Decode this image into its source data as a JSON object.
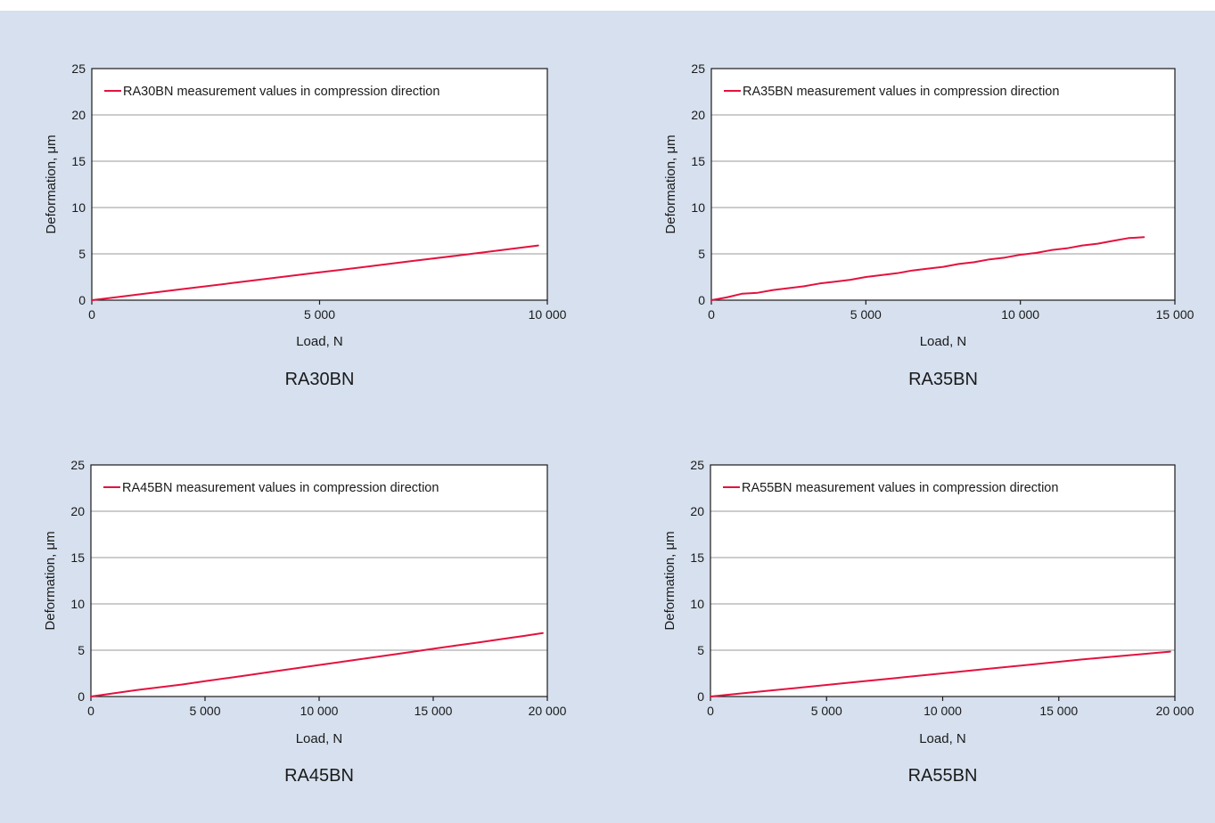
{
  "colors": {
    "background": "#d6e0ee",
    "plot_background": "#ffffff",
    "series": "#e3123f",
    "grid": "#9a9a9a",
    "axis": "#1a1a1a"
  },
  "chart_data": [
    {
      "type": "line",
      "chart_label": "RA30BN",
      "xlabel": "Load, N",
      "ylabel": "Deformation, μm",
      "xlim": [
        0,
        10000
      ],
      "ylim": [
        0,
        25
      ],
      "xticks": [
        0,
        5000,
        10000
      ],
      "xtick_labels": [
        "0",
        "5 000",
        "10 000"
      ],
      "yticks": [
        0,
        5,
        10,
        15,
        20,
        25
      ],
      "ytick_labels": [
        "0",
        "5",
        "10",
        "15",
        "20",
        "25"
      ],
      "grid": "horizontal",
      "legend_position": "top-left",
      "series": [
        {
          "name": "RA30BN measurement values in compression direction",
          "x": [
            0,
            1000,
            2000,
            3000,
            4000,
            5000,
            6000,
            7000,
            8000,
            9000,
            9800
          ],
          "y": [
            0,
            0.6,
            1.2,
            1.8,
            2.4,
            3.0,
            3.6,
            4.2,
            4.8,
            5.4,
            5.9
          ]
        }
      ]
    },
    {
      "type": "line",
      "chart_label": "RA35BN",
      "xlabel": "Load, N",
      "ylabel": "Deformation, μm",
      "xlim": [
        0,
        15000
      ],
      "ylim": [
        0,
        25
      ],
      "xticks": [
        0,
        5000,
        10000,
        15000
      ],
      "xtick_labels": [
        "0",
        "5 000",
        "10 000",
        "15 000"
      ],
      "yticks": [
        0,
        5,
        10,
        15,
        20,
        25
      ],
      "ytick_labels": [
        "0",
        "5",
        "10",
        "15",
        "20",
        "25"
      ],
      "grid": "horizontal",
      "legend_position": "top-left",
      "series": [
        {
          "name": "RA35BN measurement values in compression direction",
          "x": [
            0,
            500,
            1000,
            1500,
            2000,
            2500,
            3000,
            3500,
            4000,
            4500,
            5000,
            5500,
            6000,
            6500,
            7000,
            7500,
            8000,
            8500,
            9000,
            9500,
            10000,
            10500,
            11000,
            11500,
            12000,
            12500,
            13000,
            13500,
            14000
          ],
          "y": [
            0,
            0.3,
            0.7,
            0.8,
            1.1,
            1.3,
            1.5,
            1.8,
            2.0,
            2.2,
            2.5,
            2.7,
            2.9,
            3.2,
            3.4,
            3.6,
            3.9,
            4.1,
            4.4,
            4.6,
            4.9,
            5.1,
            5.4,
            5.6,
            5.9,
            6.1,
            6.4,
            6.7,
            6.8
          ]
        }
      ]
    },
    {
      "type": "line",
      "chart_label": "RA45BN",
      "xlabel": "Load, N",
      "ylabel": "Deformation, μm",
      "xlim": [
        0,
        20000
      ],
      "ylim": [
        0,
        25
      ],
      "xticks": [
        0,
        5000,
        10000,
        15000,
        20000
      ],
      "xtick_labels": [
        "0",
        "5 000",
        "10 000",
        "15 000",
        "20 000"
      ],
      "yticks": [
        0,
        5,
        10,
        15,
        20,
        25
      ],
      "ytick_labels": [
        "0",
        "5",
        "10",
        "15",
        "20",
        "25"
      ],
      "grid": "horizontal",
      "legend_position": "top-left",
      "series": [
        {
          "name": "RA45BN measurement values in compression direction",
          "x": [
            0,
            1000,
            2000,
            3000,
            4000,
            5000,
            6000,
            7000,
            8000,
            9000,
            10000,
            11000,
            12000,
            13000,
            14000,
            15000,
            16000,
            17000,
            18000,
            19000,
            19800
          ],
          "y": [
            0,
            0.35,
            0.7,
            1.0,
            1.3,
            1.65,
            2.0,
            2.35,
            2.7,
            3.05,
            3.4,
            3.75,
            4.1,
            4.45,
            4.8,
            5.15,
            5.5,
            5.85,
            6.2,
            6.55,
            6.85
          ]
        }
      ]
    },
    {
      "type": "line",
      "chart_label": "RA55BN",
      "xlabel": "Load, N",
      "ylabel": "Deformation, μm",
      "xlim": [
        0,
        20000
      ],
      "ylim": [
        0,
        25
      ],
      "xticks": [
        0,
        5000,
        10000,
        15000,
        20000
      ],
      "xtick_labels": [
        "0",
        "5 000",
        "10 000",
        "15 000",
        "20 000"
      ],
      "yticks": [
        0,
        5,
        10,
        15,
        20,
        25
      ],
      "ytick_labels": [
        "0",
        "5",
        "10",
        "15",
        "20",
        "25"
      ],
      "grid": "horizontal",
      "legend_position": "top-left",
      "series": [
        {
          "name": "RA55BN measurement values in compression direction",
          "x": [
            0,
            2000,
            4000,
            6000,
            8000,
            10000,
            12000,
            14000,
            16000,
            18000,
            19800
          ],
          "y": [
            0,
            0.5,
            1.0,
            1.5,
            2.0,
            2.5,
            3.0,
            3.5,
            4.0,
            4.45,
            4.85
          ]
        }
      ]
    }
  ]
}
